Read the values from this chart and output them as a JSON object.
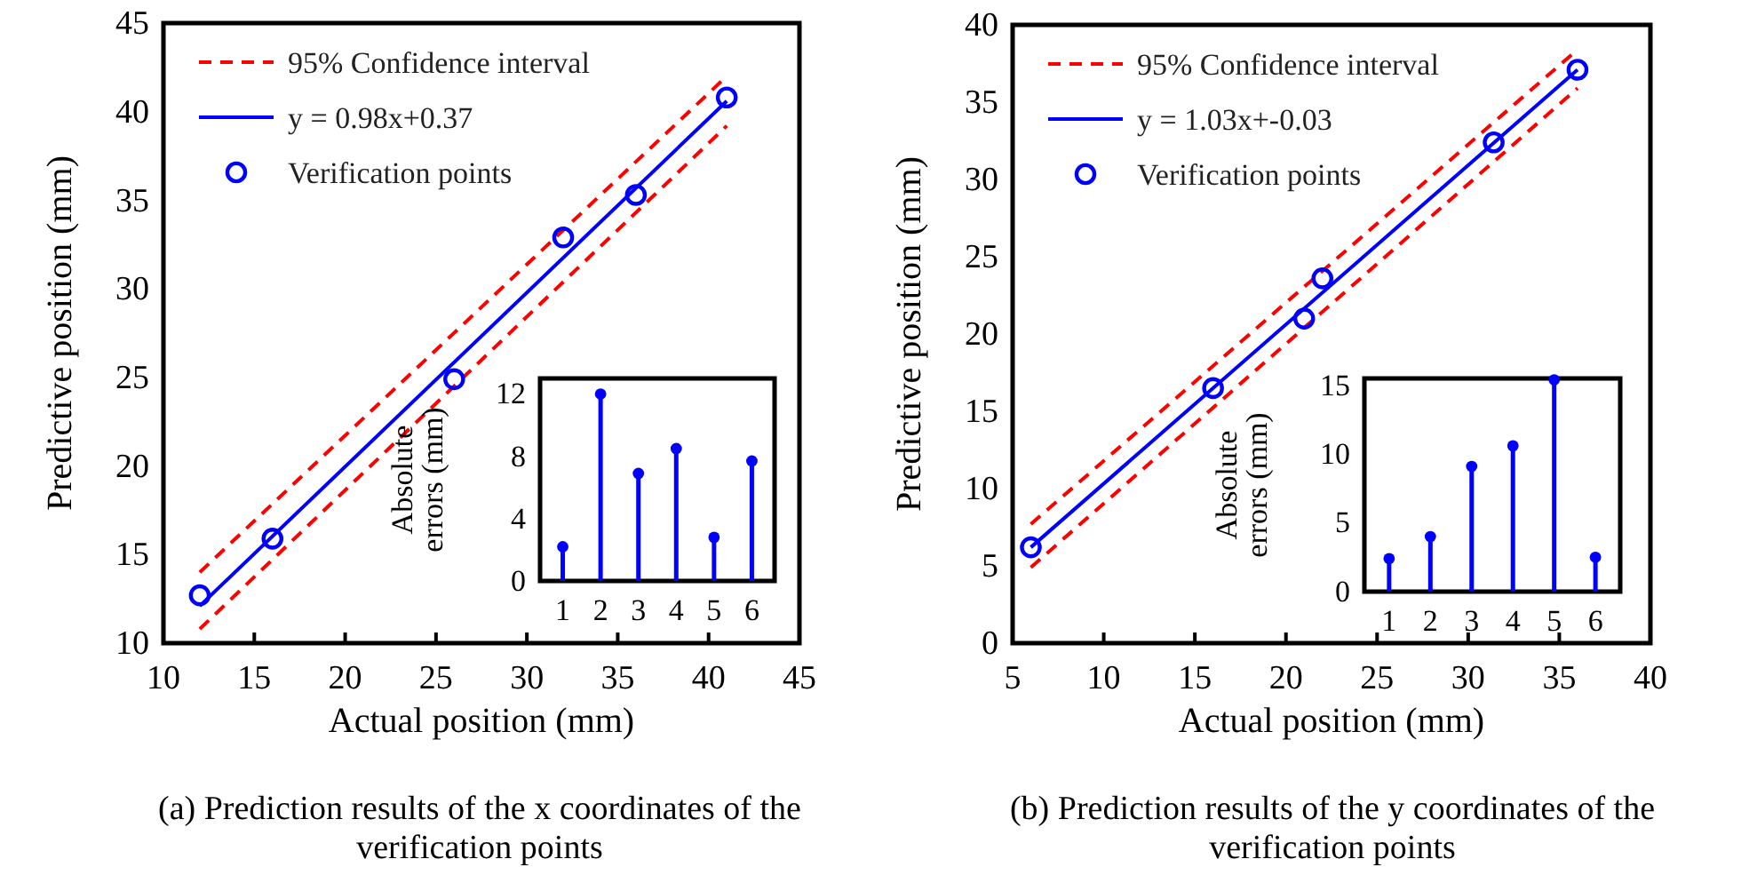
{
  "chart_data": [
    {
      "type": "scatter",
      "title": "(a) Prediction results of the x coordinates of the verification points",
      "xlabel": "Actual position (mm)",
      "ylabel": "Predictive position (mm)",
      "xlim": [
        10,
        45
      ],
      "xticks": [
        10,
        15,
        20,
        25,
        30,
        35,
        40,
        45
      ],
      "ylim": [
        10,
        45
      ],
      "yticks": [
        10,
        15,
        20,
        25,
        30,
        35,
        40,
        45
      ],
      "legend": "top left",
      "series": [
        {
          "type": "line",
          "name": "95% Confidence interval",
          "color": "#ff0000",
          "line_style": "dashed",
          "x": [
            12,
            41
          ],
          "values": [
            14.0,
            42.0
          ]
        },
        {
          "type": "line",
          "color": "#ff0000",
          "line_style": "dashed",
          "x": [
            12,
            41
          ],
          "values": [
            10.8,
            39.2
          ]
        },
        {
          "type": "line",
          "name": "y = 0.98x+0.37",
          "color": "#0000ff",
          "line_style": "solid",
          "x": [
            12,
            41
          ],
          "values": [
            12.1,
            40.6
          ]
        },
        {
          "type": "scatter",
          "name": "Verification points",
          "color": "#0000ff",
          "marker": "circle",
          "x": [
            12,
            16,
            26,
            32,
            36,
            41
          ],
          "values": [
            12.7,
            15.9,
            24.9,
            32.9,
            35.3,
            40.8
          ]
        }
      ]
    },
    {
      "type": "lollipop",
      "ylabel": "Absolute errors (mm)",
      "categories": [
        "1",
        "2",
        "3",
        "4",
        "5",
        "6"
      ],
      "values": [
        2.2,
        12.0,
        6.9,
        8.5,
        2.8,
        7.7
      ],
      "color": "#0000ff",
      "ylim": [
        0,
        13
      ],
      "yticks": [
        0,
        4,
        8,
        12
      ]
    },
    {
      "type": "scatter",
      "title": "(b) Prediction results of the y coordinates of the verification points",
      "xlabel": "Actual position (mm)",
      "ylabel": "Predictive position (mm)",
      "xlim": [
        5,
        40
      ],
      "xticks": [
        5,
        10,
        15,
        20,
        25,
        30,
        35,
        40
      ],
      "ylim": [
        0,
        40
      ],
      "yticks": [
        0,
        5,
        10,
        15,
        20,
        25,
        30,
        35,
        40
      ],
      "legend": "top left",
      "series": [
        {
          "type": "line",
          "name": "95% Confidence interval",
          "color": "#ff0000",
          "line_style": "dashed",
          "x": [
            6,
            36
          ],
          "values": [
            7.7,
            38.4
          ]
        },
        {
          "type": "line",
          "color": "#ff0000",
          "line_style": "dashed",
          "x": [
            6,
            36
          ],
          "values": [
            4.9,
            35.9
          ]
        },
        {
          "type": "line",
          "name": "y = 1.03x+-0.03",
          "color": "#0000ff",
          "line_style": "solid",
          "x": [
            6,
            36
          ],
          "values": [
            6.2,
            37.1
          ]
        },
        {
          "type": "scatter",
          "name": "Verification points",
          "color": "#0000ff",
          "marker": "circle",
          "x": [
            6,
            16,
            21,
            22,
            31.4,
            36
          ],
          "values": [
            6.2,
            16.5,
            21.0,
            23.6,
            32.4,
            37.1
          ]
        }
      ]
    },
    {
      "type": "lollipop",
      "ylabel": "Absolute errors (mm)",
      "categories": [
        "1",
        "2",
        "3",
        "4",
        "5",
        "6"
      ],
      "values": [
        2.4,
        4.0,
        9.1,
        10.6,
        15.4,
        2.5
      ],
      "color": "#0000ff",
      "ylim": [
        0,
        15.5
      ],
      "yticks": [
        0,
        5,
        10,
        15
      ]
    }
  ]
}
